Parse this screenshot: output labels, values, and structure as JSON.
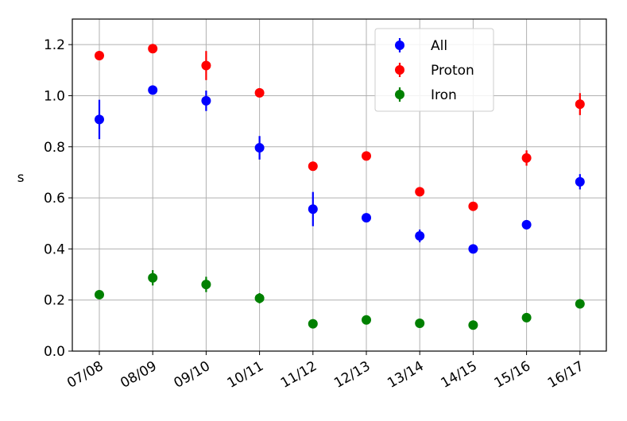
{
  "chart_data": {
    "type": "scatter",
    "title": "",
    "xlabel": "",
    "ylabel": "s",
    "ylim": [
      0.0,
      1.3
    ],
    "yticks": [
      "0.0",
      "0.2",
      "0.4",
      "0.6",
      "0.8",
      "1.0",
      "1.2"
    ],
    "categories": [
      "07/08",
      "08/09",
      "09/10",
      "10/11",
      "11/12",
      "12/13",
      "13/14",
      "14/15",
      "15/16",
      "16/17"
    ],
    "grid": true,
    "legend_position": "top-center",
    "series": [
      {
        "name": "All",
        "color": "#0000ff",
        "values": [
          0.907,
          1.022,
          0.98,
          0.796,
          0.556,
          0.522,
          0.451,
          0.4,
          0.495,
          0.663
        ],
        "errors": [
          0.077,
          0.012,
          0.04,
          0.046,
          0.067,
          0.01,
          0.025,
          0.008,
          0.018,
          0.03
        ]
      },
      {
        "name": "Proton",
        "color": "#ff0000",
        "values": [
          1.157,
          1.184,
          1.118,
          1.011,
          0.724,
          0.764,
          0.624,
          0.567,
          0.756,
          0.967
        ],
        "errors": [
          0.012,
          0.01,
          0.057,
          0.01,
          0.017,
          0.01,
          0.012,
          0.015,
          0.03,
          0.043
        ]
      },
      {
        "name": "Iron",
        "color": "#008000",
        "values": [
          0.221,
          0.287,
          0.261,
          0.207,
          0.107,
          0.122,
          0.109,
          0.102,
          0.131,
          0.185
        ],
        "errors": [
          0.01,
          0.03,
          0.03,
          0.02,
          0.008,
          0.008,
          0.008,
          0.008,
          0.008,
          0.018
        ]
      }
    ]
  }
}
